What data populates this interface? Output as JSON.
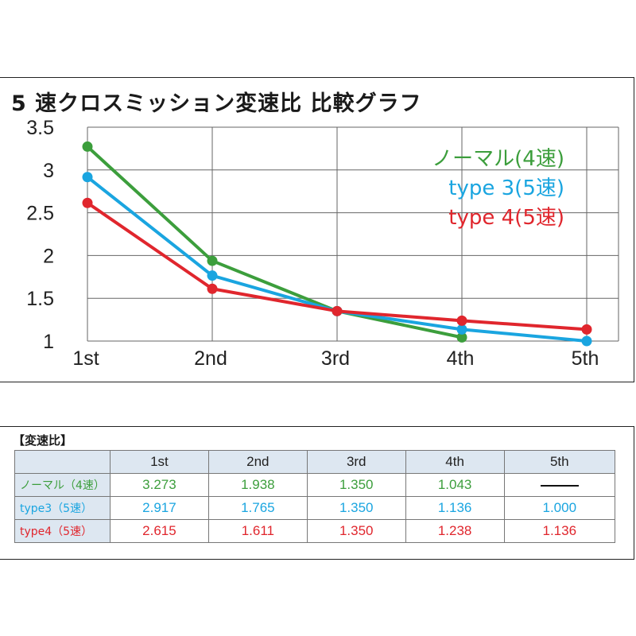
{
  "chart_data": {
    "type": "line",
    "title": "5 速クロスミッション変速比 比較グラフ",
    "categories": [
      "1st",
      "2nd",
      "3rd",
      "4th",
      "5th"
    ],
    "ylim": [
      1,
      3.5
    ],
    "yticks": [
      "3.5",
      "3",
      "2.5",
      "2",
      "1.5",
      "1"
    ],
    "grid": true,
    "legend_position": "top-right",
    "series": [
      {
        "name": "ノーマル(4速)",
        "color": "#3c9e3c",
        "values": [
          3.273,
          1.938,
          1.35,
          1.043,
          null
        ]
      },
      {
        "name": "type 3(5速)",
        "color": "#1aa5e0",
        "values": [
          2.917,
          1.765,
          1.35,
          1.136,
          1.0
        ]
      },
      {
        "name": "type 4(5速)",
        "color": "#e0262d",
        "values": [
          2.615,
          1.611,
          1.35,
          1.238,
          1.136
        ]
      }
    ]
  },
  "table": {
    "caption": "【変速比】",
    "headers": [
      "1st",
      "2nd",
      "3rd",
      "4th",
      "5th"
    ],
    "rows": [
      {
        "label": "ノーマル（4速）",
        "color": "#3c9e3c",
        "values": [
          "3.273",
          "1.938",
          "1.350",
          "1.043",
          null
        ]
      },
      {
        "label": "type3（5速）",
        "color": "#1aa5e0",
        "values": [
          "2.917",
          "1.765",
          "1.350",
          "1.136",
          "1.000"
        ]
      },
      {
        "label": "type4（5速）",
        "color": "#e0262d",
        "values": [
          "2.615",
          "1.611",
          "1.350",
          "1.238",
          "1.136"
        ]
      }
    ]
  }
}
